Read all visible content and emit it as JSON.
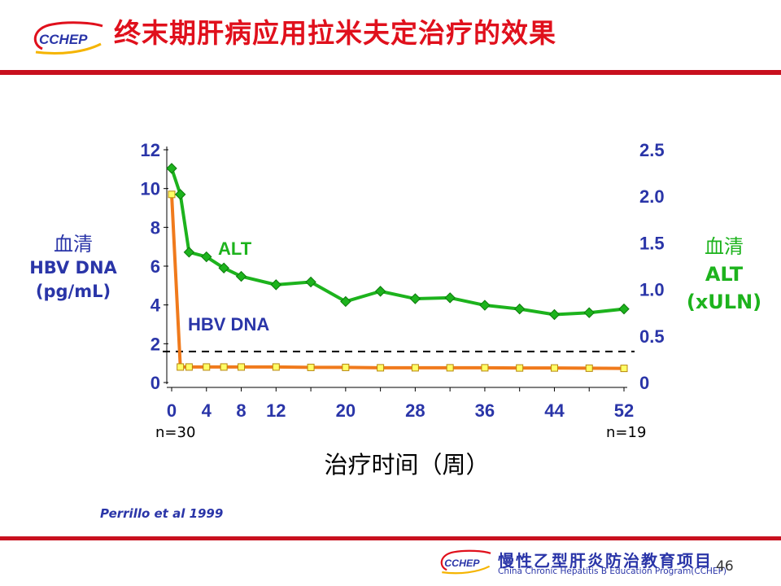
{
  "slide": {
    "title": "终末期肝病应用拉米夫定治疗的效果",
    "logo_text": "CCHEP",
    "citation": "Perrillo et al 1999",
    "page_number": "46",
    "footer_cn": "慢性乙型肝炎防治教育项目",
    "footer_en": "China Chronic Hepatitis B Education Program(CCHEP)",
    "colors": {
      "title": "#e0101c",
      "rule": "#c8101e",
      "navy": "#2a35a8",
      "alt": "#1db31d",
      "hbv": "#f07a1c"
    }
  },
  "chart_data": {
    "type": "line",
    "xlabel": "治疗时间（周）",
    "x_ticks": [
      0,
      4,
      8,
      12,
      20,
      28,
      36,
      44,
      52
    ],
    "x_range": [
      0,
      52
    ],
    "n_start": "n=30",
    "n_end": "n=19",
    "y_left": {
      "label_cn": "血清",
      "label_line1": "HBV DNA",
      "label_line2": "(pg/mL)",
      "ticks": [
        0,
        2,
        4,
        6,
        8,
        10,
        12
      ],
      "range": [
        0,
        12
      ]
    },
    "y_right": {
      "label_cn": "血清",
      "label_line1": "ALT",
      "label_line2": "(xULN)",
      "ticks": [
        "0",
        "0.5",
        "1.0",
        "1.5",
        "2.0",
        "2.5"
      ],
      "range": [
        0,
        2.5
      ]
    },
    "reference_line": {
      "axis": "left",
      "value": 1.6,
      "style": "dashed"
    },
    "series": [
      {
        "name": "ALT",
        "axis": "right",
        "color": "#1db31d",
        "marker": "diamond",
        "x": [
          0,
          1,
          2,
          4,
          6,
          8,
          12,
          16,
          20,
          24,
          28,
          32,
          36,
          40,
          44,
          48,
          52
        ],
        "y": [
          2.3,
          2.02,
          1.4,
          1.35,
          1.23,
          1.14,
          1.05,
          1.08,
          0.87,
          0.98,
          0.9,
          0.91,
          0.83,
          0.79,
          0.73,
          0.75,
          0.79
        ]
      },
      {
        "name": "HBV DNA",
        "axis": "left",
        "color": "#f07a1c",
        "marker": "square",
        "x": [
          0,
          1,
          2,
          4,
          6,
          8,
          12,
          16,
          20,
          24,
          28,
          32,
          36,
          40,
          44,
          48,
          52
        ],
        "y": [
          9.7,
          0.8,
          0.8,
          0.8,
          0.8,
          0.8,
          0.8,
          0.78,
          0.78,
          0.76,
          0.76,
          0.76,
          0.76,
          0.75,
          0.75,
          0.74,
          0.73
        ]
      }
    ]
  }
}
